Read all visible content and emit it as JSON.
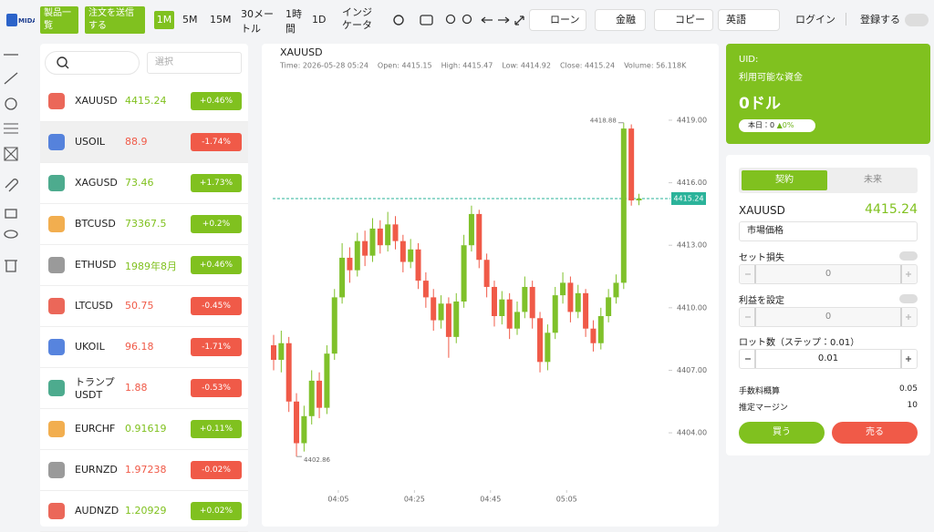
{
  "header": {
    "logo": "MIDA",
    "buttons": [
      "製品一覧",
      "注文を送信する"
    ],
    "timeframes": [
      "1M",
      "5M",
      "15M",
      "30メートル",
      "1時間",
      "1D"
    ],
    "active_timeframe": 0,
    "indicator": "インジケータ",
    "actions": [
      "ローン",
      "金融",
      "コピー"
    ],
    "language": "英語",
    "login": "ログイン",
    "register": "登録する"
  },
  "symbol_list": {
    "filter": "選択",
    "selected": 1,
    "rows": [
      {
        "name": "XAUUSD",
        "price": "4415.24",
        "change": "+0.46%",
        "trend": "up"
      },
      {
        "name": "USOIL",
        "price": "88.9",
        "change": "-1.74%",
        "trend": "down"
      },
      {
        "name": "XAGUSD",
        "price": "73.46",
        "change": "+1.73%",
        "trend": "up"
      },
      {
        "name": "BTCUSD",
        "price": "73367.5",
        "change": "+0.2%",
        "trend": "up"
      },
      {
        "name": "ETHUSD",
        "price": "1989年8月",
        "change": "+0.46%",
        "trend": "up"
      },
      {
        "name": "LTCUSD",
        "price": "50.75",
        "change": "-0.45%",
        "trend": "down"
      },
      {
        "name": "UKOIL",
        "price": "96.18",
        "change": "-1.71%",
        "trend": "down"
      },
      {
        "name": "トランプ USDT",
        "price": "1.88",
        "change": "-0.53%",
        "trend": "down"
      },
      {
        "name": "EURCHF",
        "price": "0.91619",
        "change": "+0.11%",
        "trend": "up"
      },
      {
        "name": "EURNZD",
        "price": "1.97238",
        "change": "-0.02%",
        "trend": "down"
      },
      {
        "name": "AUDNZD",
        "price": "1.20929",
        "change": "+0.02%",
        "trend": "up"
      }
    ]
  },
  "chart_data": {
    "type": "candlestick",
    "title": "XAUUSD",
    "info": [
      "Time: 2026-05-28 05:24",
      "Open: 4415.15",
      "High: 4415.47",
      "Low: 4414.92",
      "Close: 4415.24",
      "Volume: 56.118K"
    ],
    "up_color": "#7fc12a",
    "down_color": "#f05a48",
    "x": [
      "03:48",
      "03:50",
      "03:52",
      "03:54",
      "03:56",
      "03:58",
      "04:00",
      "04:02",
      "04:04",
      "04:06",
      "04:08",
      "04:10",
      "04:12",
      "04:14",
      "04:16",
      "04:18",
      "04:20",
      "04:22",
      "04:24",
      "04:26",
      "04:28",
      "04:30",
      "04:32",
      "04:34",
      "04:36",
      "04:38",
      "04:40",
      "04:42",
      "04:44",
      "04:46",
      "04:48",
      "04:50",
      "04:52",
      "04:54",
      "04:56",
      "04:58",
      "05:00",
      "05:02",
      "05:04",
      "05:06",
      "05:08",
      "05:10",
      "05:12",
      "05:14",
      "05:16",
      "05:18",
      "05:20",
      "05:22",
      "05:24"
    ],
    "open": [
      4408.2,
      4407.5,
      4408.3,
      4405.5,
      4403.5,
      4404.8,
      4406.5,
      4405.2,
      4407.8,
      4410.5,
      4412.4,
      4411.8,
      4413.2,
      4412.5,
      4413.8,
      4413.0,
      4414.0,
      4413.2,
      4412.2,
      4412.8,
      4411.3,
      4410.5,
      4409.4,
      4410.2,
      4408.6,
      4410.3,
      4413.0,
      4414.5,
      4412.3,
      4411.0,
      4409.6,
      4410.4,
      4409.0,
      4409.8,
      4411.0,
      4409.5,
      4407.4,
      4408.8,
      4410.6,
      4411.2,
      4409.8,
      4410.7,
      4409.0,
      4408.3,
      4409.6,
      4410.5,
      4411.2,
      4418.6,
      4415.15
    ],
    "high": [
      4408.7,
      4408.9,
      4408.6,
      4405.9,
      4405.3,
      4407.0,
      4406.9,
      4408.2,
      4410.9,
      4413.1,
      4412.9,
      4413.6,
      4413.7,
      4414.3,
      4414.2,
      4414.6,
      4414.4,
      4413.5,
      4413.3,
      4413.1,
      4411.7,
      4410.9,
      4410.6,
      4410.5,
      4410.7,
      4413.5,
      4414.9,
      4414.7,
      4412.6,
      4411.3,
      4410.8,
      4410.7,
      4410.3,
      4411.5,
      4411.3,
      4409.8,
      4409.2,
      4411.0,
      4411.7,
      4411.5,
      4411.1,
      4410.9,
      4409.4,
      4410.0,
      4410.9,
      4411.6,
      4418.88,
      4418.8,
      4415.47
    ],
    "low": [
      4407.0,
      4406.9,
      4405.0,
      4402.86,
      4403.1,
      4404.4,
      4404.7,
      4404.9,
      4407.5,
      4410.2,
      4411.2,
      4411.5,
      4412.0,
      4412.2,
      4412.6,
      4412.7,
      4412.8,
      4411.7,
      4411.9,
      4410.9,
      4410.0,
      4408.9,
      4409.0,
      4407.6,
      4408.3,
      4410.0,
      4412.7,
      4411.9,
      4410.5,
      4409.1,
      4409.2,
      4408.5,
      4408.7,
      4409.5,
      4409.0,
      4406.9,
      4407.0,
      4408.5,
      4410.2,
      4409.3,
      4409.5,
      4408.6,
      4407.9,
      4408.0,
      4409.3,
      4410.2,
      4410.9,
      4414.9,
      4414.92
    ],
    "close": [
      4407.5,
      4408.3,
      4405.5,
      4403.5,
      4404.8,
      4406.5,
      4405.2,
      4407.8,
      4410.5,
      4412.4,
      4411.8,
      4413.2,
      4412.5,
      4413.8,
      4413.0,
      4414.0,
      4413.2,
      4412.2,
      4412.8,
      4411.3,
      4410.5,
      4409.4,
      4410.2,
      4408.6,
      4410.3,
      4413.0,
      4414.5,
      4412.3,
      4411.0,
      4409.6,
      4410.4,
      4409.0,
      4409.8,
      4411.0,
      4409.5,
      4407.4,
      4408.8,
      4410.6,
      4411.2,
      4409.8,
      4410.7,
      4409.0,
      4408.3,
      4409.6,
      4410.5,
      4411.2,
      4418.6,
      4415.15,
      4415.24
    ],
    "xlim": [
      "03:48",
      "05:24"
    ],
    "xticks": [
      "04:05",
      "04:25",
      "04:45",
      "05:05"
    ],
    "ylim": [
      4401.6,
      4419.96
    ],
    "yticks": [
      {
        "value": 4404,
        "label": "4404.00"
      },
      {
        "value": 4407,
        "label": "4407.00"
      },
      {
        "value": 4410,
        "label": "4410.00"
      },
      {
        "value": 4413,
        "label": "4413.00"
      },
      {
        "value": 4416,
        "label": "4416.00"
      },
      {
        "value": 4419,
        "label": "4419.00"
      }
    ],
    "high_marker": 4418.88,
    "low_marker": 4402.86,
    "last_price": 4415.24,
    "last_price_color": "#2bb39a"
  },
  "account": {
    "uid": "UID:",
    "funds_label": "利用可能な資金",
    "balance": "0ドル",
    "today": "本日：0",
    "today_change": "0%"
  },
  "order": {
    "tabs": [
      "契約",
      "未来"
    ],
    "symbol": "XAUUSD",
    "price": "4415.24",
    "order_type": "市場価格",
    "stop_loss": "セット損失",
    "stop_loss_value": "0",
    "take_profit": "利益を設定",
    "take_profit_value": "0",
    "lots_label": "ロット数（ステップ：0.01）",
    "lots": "0.01",
    "fee_label": "手数料概算",
    "fee": "0.05",
    "margin_label": "推定マージン",
    "margin": "10",
    "buy": "買う",
    "sell": "売る"
  }
}
